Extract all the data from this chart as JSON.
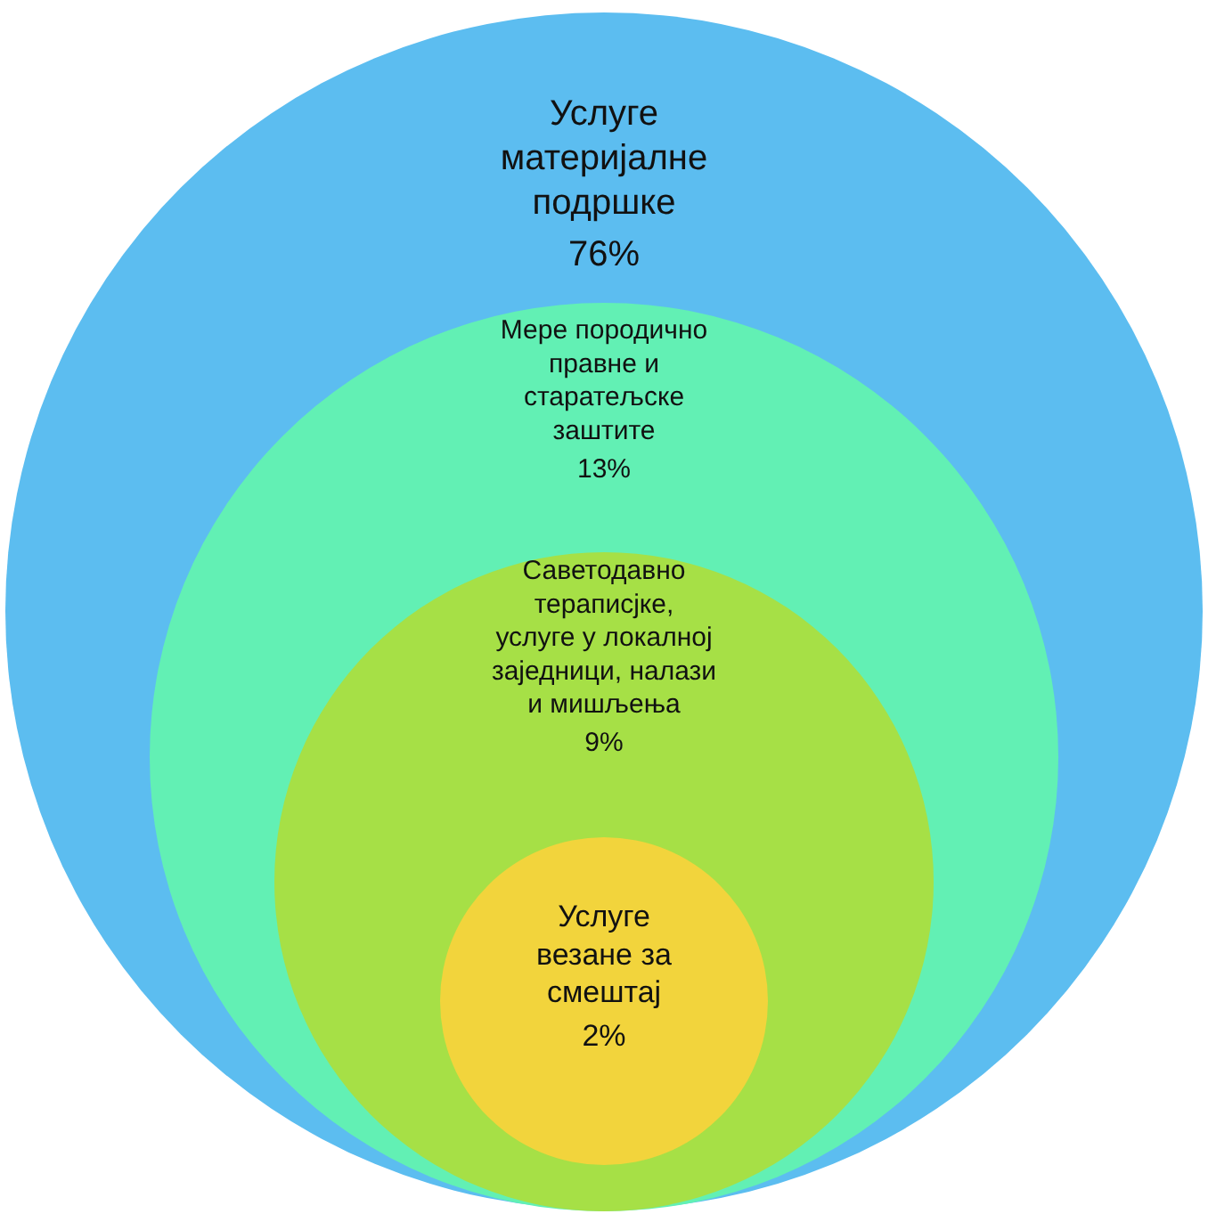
{
  "chart_data": {
    "type": "other",
    "categories": [
      "Услуге материјалне подршке",
      "Мере породично правне и старатељске заштите",
      "Саветодавно тераписјке, услуге у локалној заједници, налази и мишљења",
      "Услуге везане за смештај"
    ],
    "values": [
      76,
      13,
      9,
      2
    ],
    "value_labels": [
      "76%",
      "13%",
      "9%",
      "2%"
    ],
    "colors": [
      "#5cbdf0",
      "#62f0b4",
      "#a6e046",
      "#f2d43c"
    ]
  }
}
